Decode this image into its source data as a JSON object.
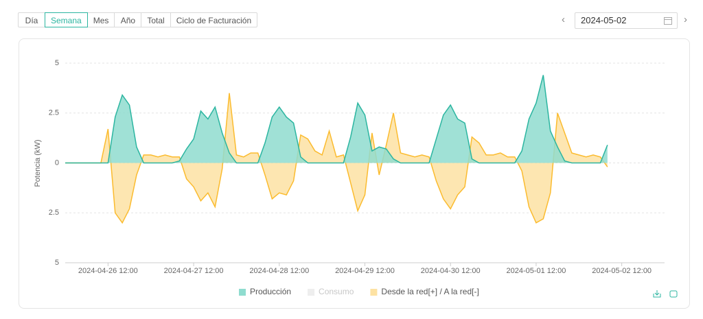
{
  "tabs": [
    "Día",
    "Semana",
    "Mes",
    "Año",
    "Total",
    "Ciclo de Facturación"
  ],
  "selected_tab": 1,
  "date": "2024-05-02",
  "chart_data": {
    "type": "area",
    "y_label": "Potencia  (kW)",
    "x": [
      "2024-04-26 00:00",
      "2024-04-26 02:00",
      "2024-04-26 04:00",
      "2024-04-26 06:00",
      "2024-04-26 08:00",
      "2024-04-26 10:00",
      "2024-04-26 12:00",
      "2024-04-26 14:00",
      "2024-04-26 16:00",
      "2024-04-26 18:00",
      "2024-04-26 20:00",
      "2024-04-26 22:00",
      "2024-04-27 00:00",
      "2024-04-27 02:00",
      "2024-04-27 04:00",
      "2024-04-27 06:00",
      "2024-04-27 08:00",
      "2024-04-27 10:00",
      "2024-04-27 12:00",
      "2024-04-27 14:00",
      "2024-04-27 16:00",
      "2024-04-27 18:00",
      "2024-04-27 20:00",
      "2024-04-27 22:00",
      "2024-04-28 00:00",
      "2024-04-28 02:00",
      "2024-04-28 04:00",
      "2024-04-28 06:00",
      "2024-04-28 08:00",
      "2024-04-28 10:00",
      "2024-04-28 12:00",
      "2024-04-28 14:00",
      "2024-04-28 16:00",
      "2024-04-28 18:00",
      "2024-04-28 20:00",
      "2024-04-28 22:00",
      "2024-04-29 00:00",
      "2024-04-29 02:00",
      "2024-04-29 04:00",
      "2024-04-29 06:00",
      "2024-04-29 08:00",
      "2024-04-29 10:00",
      "2024-04-29 12:00",
      "2024-04-29 14:00",
      "2024-04-29 16:00",
      "2024-04-29 18:00",
      "2024-04-29 20:00",
      "2024-04-29 22:00",
      "2024-04-30 00:00",
      "2024-04-30 02:00",
      "2024-04-30 04:00",
      "2024-04-30 06:00",
      "2024-04-30 08:00",
      "2024-04-30 10:00",
      "2024-04-30 12:00",
      "2024-04-30 14:00",
      "2024-04-30 16:00",
      "2024-04-30 18:00",
      "2024-04-30 20:00",
      "2024-04-30 22:00",
      "2024-05-01 00:00",
      "2024-05-01 02:00",
      "2024-05-01 04:00",
      "2024-05-01 06:00",
      "2024-05-01 08:00",
      "2024-05-01 10:00",
      "2024-05-01 12:00",
      "2024-05-01 14:00",
      "2024-05-01 16:00",
      "2024-05-01 18:00",
      "2024-05-01 20:00",
      "2024-05-01 22:00",
      "2024-05-02 00:00",
      "2024-05-02 02:00",
      "2024-05-02 04:00",
      "2024-05-02 06:00",
      "2024-05-02 08:00"
    ],
    "series": [
      {
        "name": "Producción",
        "color": "#2bb5a0",
        "fill": "#8fdccf",
        "visible": true,
        "values": [
          0,
          0,
          0,
          0,
          0,
          0,
          0,
          2.3,
          3.4,
          2.9,
          0.8,
          0,
          0,
          0,
          0,
          0,
          0.1,
          0.7,
          1.2,
          2.6,
          2.2,
          2.8,
          1.5,
          0.5,
          0,
          0,
          0,
          0,
          1.0,
          2.3,
          2.8,
          2.3,
          2.0,
          0.3,
          0,
          0,
          0,
          0,
          0,
          0,
          1.3,
          3.0,
          2.4,
          0.6,
          0.8,
          0.7,
          0.2,
          0,
          0,
          0,
          0,
          0,
          1.2,
          2.4,
          2.9,
          2.2,
          2.0,
          0.2,
          0,
          0,
          0,
          0,
          0,
          0,
          0.6,
          2.2,
          3.0,
          4.4,
          1.6,
          0.8,
          0.1,
          0,
          0,
          0,
          0,
          0,
          0.9
        ]
      },
      {
        "name": "Consumo",
        "color": "#e6e6e6",
        "fill": "#f2f2f2",
        "visible": false,
        "values": [
          null,
          null,
          null,
          null,
          null,
          null,
          null,
          null,
          null,
          null,
          null,
          null,
          null,
          null,
          null,
          null,
          null,
          null,
          null,
          null,
          null,
          null,
          null,
          null,
          null,
          null,
          null,
          null,
          null,
          null,
          null,
          null,
          null,
          null,
          null,
          null,
          null,
          null,
          null,
          null,
          null,
          null,
          null,
          null,
          null,
          null,
          null,
          null,
          null,
          null,
          null,
          null,
          null,
          null,
          null,
          null,
          null,
          null,
          null,
          null,
          null,
          null,
          null,
          null,
          null,
          null,
          null,
          null,
          null,
          null,
          null,
          null,
          null,
          null,
          null,
          null,
          null
        ]
      },
      {
        "name": "Desde la red[+] / A la red[-]",
        "color": "#fbbb2e",
        "fill": "#fde2a3",
        "visible": true,
        "values": [
          0,
          0,
          0,
          0,
          0,
          0,
          1.7,
          -2.5,
          -3.0,
          -2.3,
          -0.6,
          0.4,
          0.4,
          0.3,
          0.4,
          0.3,
          0.3,
          -0.8,
          -1.2,
          -1.9,
          -1.5,
          -2.2,
          -0.3,
          3.5,
          0.4,
          0.3,
          0.5,
          0.5,
          -0.6,
          -1.8,
          -1.5,
          -1.6,
          -0.9,
          1.4,
          1.2,
          0.6,
          0.4,
          1.6,
          0.3,
          0.4,
          -1.0,
          -2.4,
          -1.6,
          1.5,
          -0.6,
          0.9,
          2.5,
          0.5,
          0.4,
          0.3,
          0.4,
          0.3,
          -0.9,
          -1.8,
          -2.3,
          -1.6,
          -1.2,
          1.3,
          1.0,
          0.4,
          0.4,
          0.5,
          0.3,
          0.3,
          -0.4,
          -2.2,
          -3.0,
          -2.8,
          -1.5,
          2.5,
          1.5,
          0.5,
          0.4,
          0.3,
          0.4,
          0.3,
          -0.2
        ]
      }
    ],
    "xlim": [
      "2024-04-26 00:00",
      "2024-05-03 00:00"
    ],
    "xticks": [
      "2024-04-26 12:00",
      "2024-04-27 12:00",
      "2024-04-28 12:00",
      "2024-04-29 12:00",
      "2024-04-30 12:00",
      "2024-05-01 12:00",
      "2024-05-02 12:00"
    ],
    "ylim": [
      -5,
      5
    ],
    "yticks": [
      {
        "value": -5,
        "label": "5"
      },
      {
        "value": -2.5,
        "label": "2.5"
      },
      0,
      2.5,
      5
    ],
    "grid": true
  }
}
